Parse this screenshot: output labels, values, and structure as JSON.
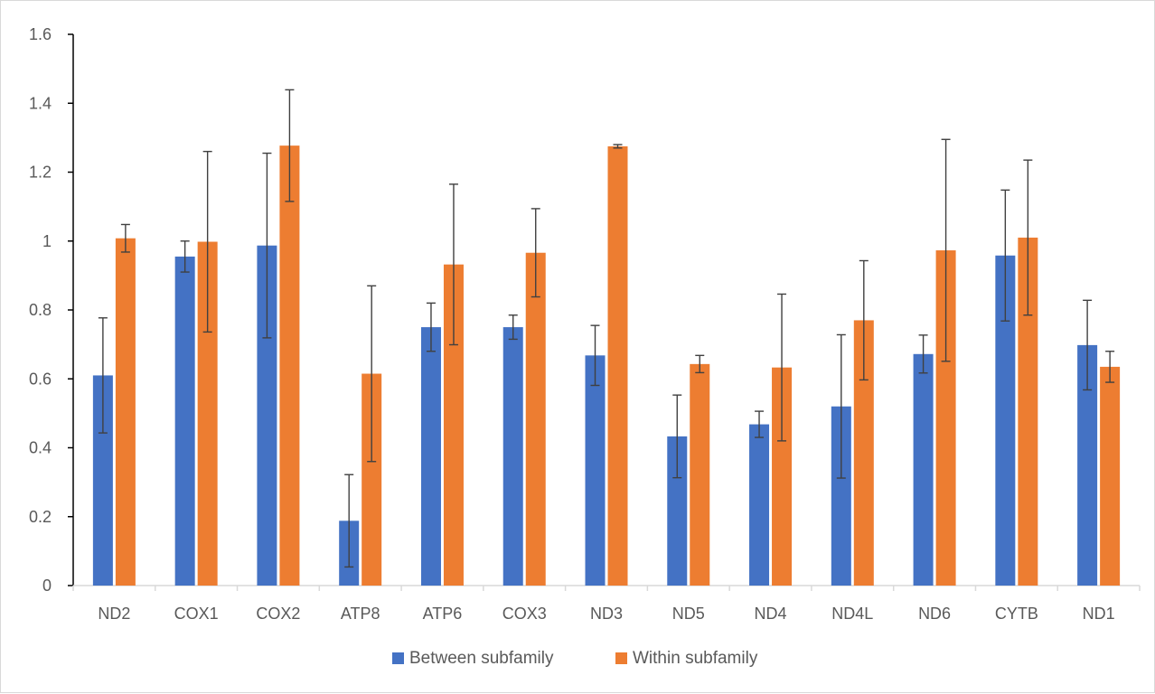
{
  "chart_data": {
    "type": "bar",
    "categories": [
      "ND2",
      "COX1",
      "COX2",
      "ATP8",
      "ATP6",
      "COX3",
      "ND3",
      "ND5",
      "ND4",
      "ND4L",
      "ND6",
      "CYTB",
      "ND1"
    ],
    "series": [
      {
        "name": "Between subfamily",
        "color": "#4472c4",
        "values": [
          0.61,
          0.955,
          0.987,
          0.188,
          0.75,
          0.75,
          0.668,
          0.433,
          0.468,
          0.52,
          0.672,
          0.958,
          0.698
        ],
        "error": [
          0.167,
          0.045,
          0.268,
          0.134,
          0.07,
          0.035,
          0.087,
          0.12,
          0.038,
          0.208,
          0.055,
          0.19,
          0.13
        ]
      },
      {
        "name": "Within subfamily",
        "color": "#ed7d31",
        "values": [
          1.008,
          0.998,
          1.277,
          0.615,
          0.932,
          0.966,
          1.275,
          0.643,
          0.633,
          0.77,
          0.973,
          1.01,
          0.635
        ],
        "error": [
          0.04,
          0.262,
          0.162,
          0.255,
          0.233,
          0.128,
          0.005,
          0.025,
          0.213,
          0.173,
          0.322,
          0.225,
          0.045
        ]
      }
    ],
    "ylim": [
      0,
      1.6
    ],
    "yticks": [
      "0",
      "0.2",
      "0.4",
      "0.6",
      "0.8",
      "1",
      "1.2",
      "1.4",
      "1.6"
    ],
    "legend_position": "bottom",
    "grid": false
  }
}
